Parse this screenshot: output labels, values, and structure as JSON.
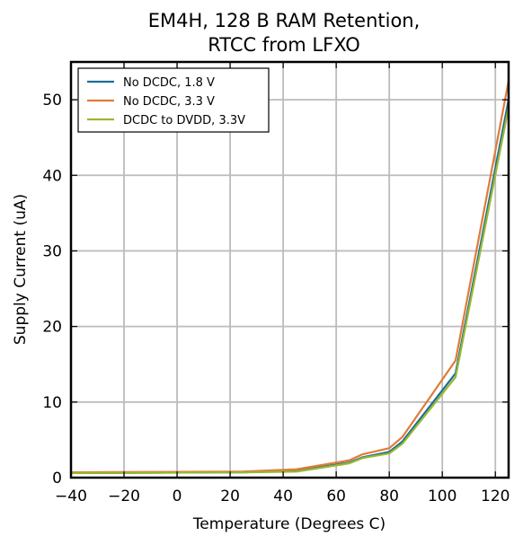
{
  "chart_data": {
    "type": "line",
    "title_lines": [
      "EM4H, 128 B RAM Retention,",
      "RTCC from LFXO"
    ],
    "xlabel": "Temperature (Degrees C)",
    "ylabel": "Supply Current (uA)",
    "xlim": [
      -40,
      125
    ],
    "ylim": [
      0,
      55
    ],
    "xticks": [
      -40,
      -20,
      0,
      20,
      40,
      60,
      80,
      100,
      120
    ],
    "xtick_labels": [
      "−40",
      "−20",
      "0",
      "20",
      "40",
      "60",
      "80",
      "100",
      "120"
    ],
    "yticks": [
      0,
      10,
      20,
      30,
      40,
      50
    ],
    "ytick_labels": [
      "0",
      "10",
      "20",
      "30",
      "40",
      "50"
    ],
    "grid": true,
    "legend_position": "top-left",
    "series": [
      {
        "name": "No DCDC, 1.8 V",
        "color": "#1a6f9a",
        "x": [
          -40,
          25,
          45,
          65,
          70,
          80,
          85,
          105,
          125
        ],
        "y": [
          0.6,
          0.7,
          0.9,
          2.0,
          2.7,
          3.4,
          4.8,
          13.8,
          50.0
        ]
      },
      {
        "name": "No DCDC, 3.3 V",
        "color": "#e07b39",
        "x": [
          -40,
          25,
          45,
          65,
          70,
          80,
          85,
          105,
          125
        ],
        "y": [
          0.7,
          0.8,
          1.1,
          2.3,
          3.1,
          3.9,
          5.4,
          15.5,
          52.5
        ]
      },
      {
        "name": "DCDC to DVDD, 3.3V",
        "color": "#9ab832",
        "x": [
          -40,
          25,
          45,
          65,
          70,
          80,
          85,
          105,
          125
        ],
        "y": [
          0.6,
          0.7,
          0.8,
          1.9,
          2.6,
          3.2,
          4.5,
          13.3,
          49.0
        ]
      }
    ]
  }
}
